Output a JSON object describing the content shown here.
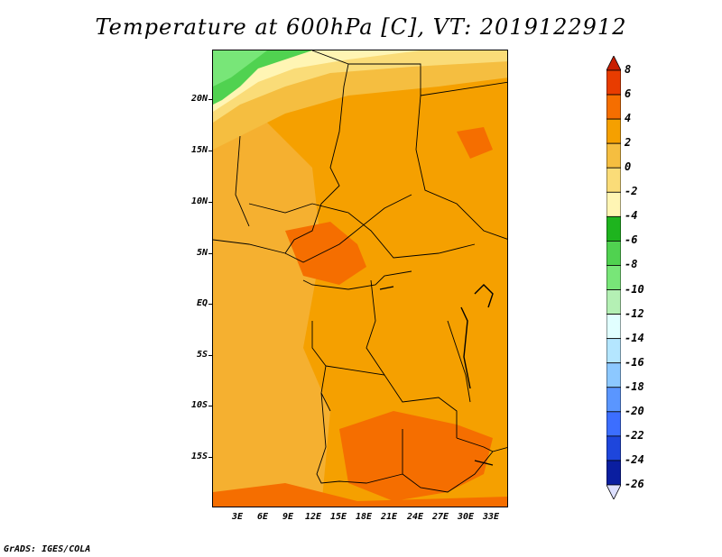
{
  "title": "Temperature at 600hPa [C], VT: 2019122912",
  "credit": "GrADS: IGES/COLA",
  "map": {
    "x_axis_labels": [
      "3E",
      "6E",
      "9E",
      "12E",
      "15E",
      "18E",
      "21E",
      "24E",
      "27E",
      "30E",
      "33E"
    ],
    "y_axis_labels": [
      "20N",
      "15N",
      "10N",
      "5N",
      "EQ",
      "5S",
      "10S",
      "15S"
    ]
  },
  "colorbar": {
    "labels": [
      "8",
      "6",
      "4",
      "2",
      "0",
      "-2",
      "-4",
      "-6",
      "-8",
      "-10",
      "-12",
      "-14",
      "-16",
      "-18",
      "-20",
      "-22",
      "-24",
      "-26"
    ],
    "colors": [
      "#c81e00",
      "#e83c00",
      "#f56e00",
      "#f5a000",
      "#f5be40",
      "#fadc78",
      "#fff5b4",
      "#1eb41e",
      "#50d250",
      "#78e678",
      "#b4f0b4",
      "#e1ffff",
      "#b4e6ff",
      "#8cc8ff",
      "#5a96ff",
      "#3c6eff",
      "#1e46dc",
      "#0a1ea0",
      "#00005a"
    ]
  }
}
